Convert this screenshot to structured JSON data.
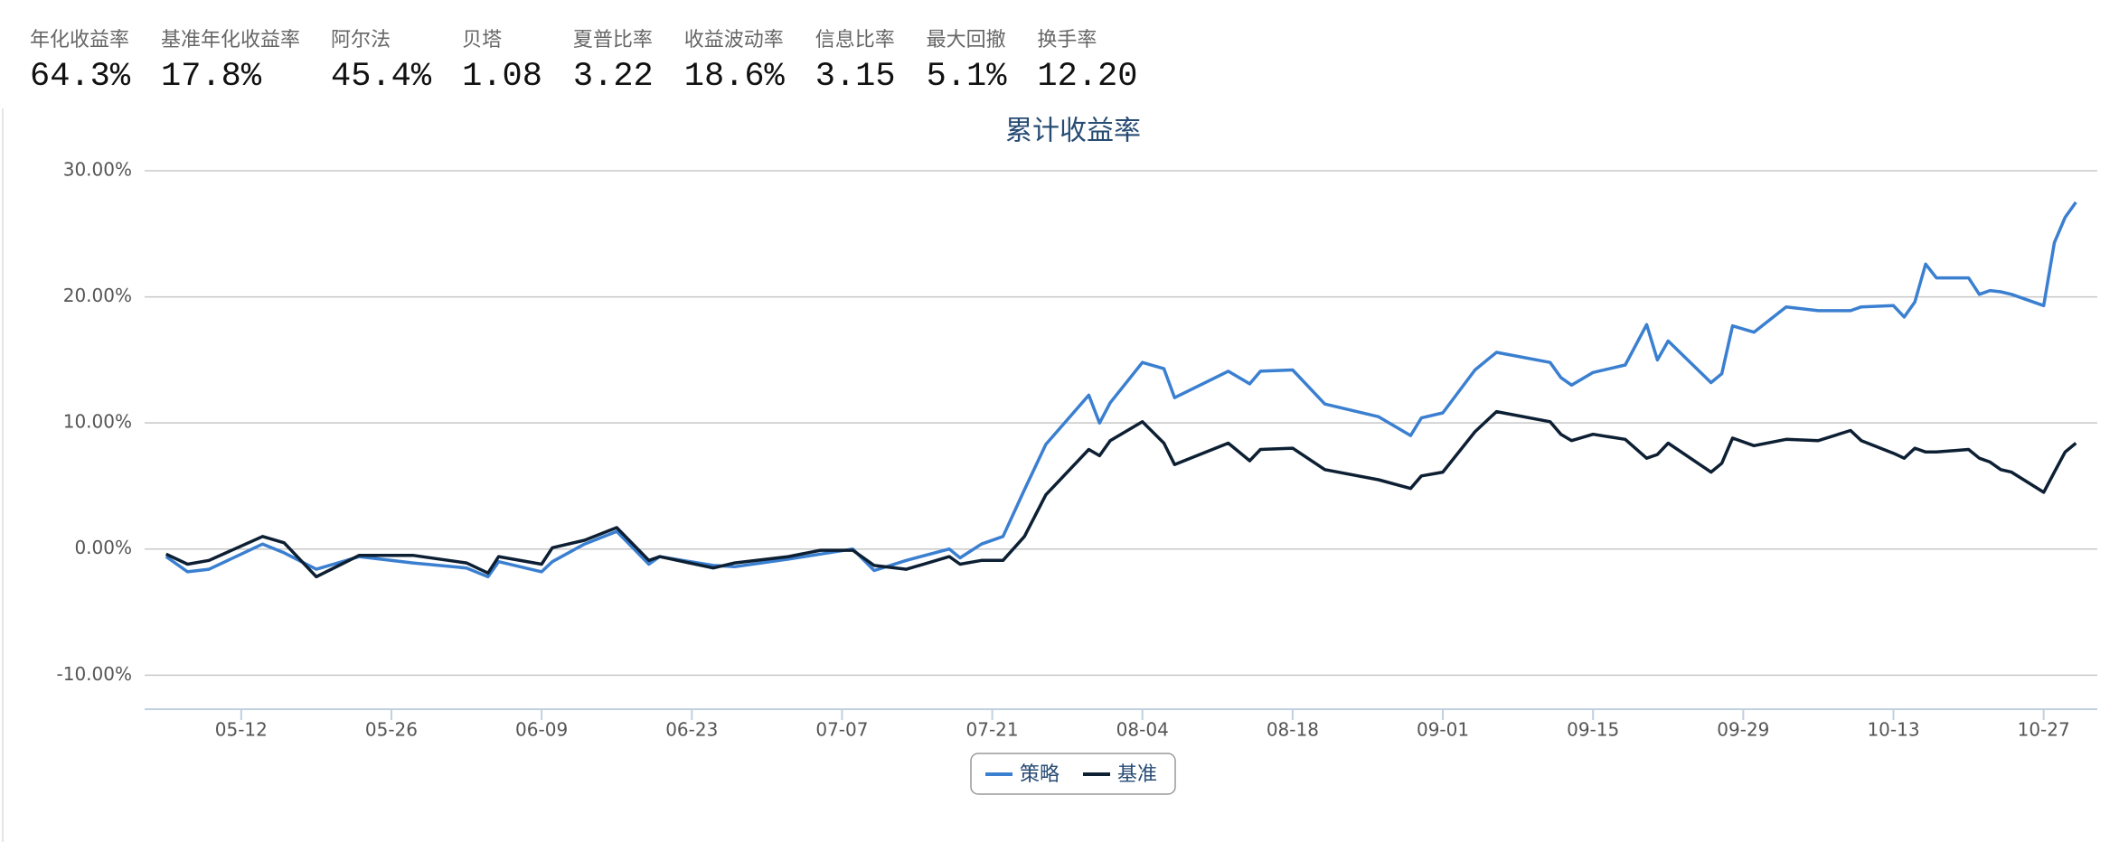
{
  "stats": [
    {
      "label": "年化收益率",
      "value": "64.3%"
    },
    {
      "label": "基准年化收益率",
      "value": "17.8%"
    },
    {
      "label": "阿尔法",
      "value": "45.4%"
    },
    {
      "label": "贝塔",
      "value": "1.08"
    },
    {
      "label": "夏普比率",
      "value": "3.22"
    },
    {
      "label": "收益波动率",
      "value": "18.6%"
    },
    {
      "label": "信息比率",
      "value": "3.15"
    },
    {
      "label": "最大回撤",
      "value": "5.1%"
    },
    {
      "label": "换手率",
      "value": "12.20"
    }
  ],
  "chart_data": {
    "type": "line",
    "title": "累计收益率",
    "x": [
      "05-05",
      "05-07",
      "05-09",
      "05-14",
      "05-16",
      "05-19",
      "05-23",
      "05-28",
      "06-02",
      "06-04",
      "06-05",
      "06-09",
      "06-10",
      "06-13",
      "06-16",
      "06-19",
      "06-20",
      "06-25",
      "06-27",
      "07-02",
      "07-05",
      "07-08",
      "07-10",
      "07-13",
      "07-17",
      "07-18",
      "07-20",
      "07-22",
      "07-24",
      "07-26",
      "07-30",
      "07-31",
      "08-01",
      "08-04",
      "08-06",
      "08-07",
      "08-12",
      "08-14",
      "08-15",
      "08-18",
      "08-21",
      "08-26",
      "08-29",
      "08-30",
      "09-01",
      "09-04",
      "09-06",
      "09-11",
      "09-12",
      "09-13",
      "09-15",
      "09-18",
      "09-20",
      "09-21",
      "09-22",
      "09-26",
      "09-27",
      "09-28",
      "09-30",
      "10-03",
      "10-06",
      "10-09",
      "10-10",
      "10-13",
      "10-14",
      "10-15",
      "10-16",
      "10-17",
      "10-20",
      "10-21",
      "10-22",
      "10-23",
      "10-24",
      "10-27",
      "10-28",
      "10-29",
      "10-30"
    ],
    "series": [
      {
        "name": "策略",
        "color": "#3a7fd0",
        "values": [
          -0.6,
          -1.8,
          -1.6,
          0.4,
          -0.3,
          -1.6,
          -0.6,
          -1.1,
          -1.5,
          -2.2,
          -1.0,
          -1.8,
          -1.0,
          0.4,
          1.4,
          -1.2,
          -0.6,
          -1.3,
          -1.4,
          -0.8,
          -0.4,
          0,
          -1.7,
          -0.9,
          0,
          -0.7,
          0.4,
          1.0,
          4.7,
          8.3,
          12.2,
          10.0,
          11.6,
          14.8,
          14.3,
          12.0,
          14.1,
          13.1,
          14.1,
          14.2,
          11.5,
          10.5,
          9.0,
          10.4,
          10.8,
          14.2,
          15.6,
          14.8,
          13.6,
          13.0,
          14.0,
          14.6,
          17.8,
          15.0,
          16.5,
          13.2,
          13.9,
          17.7,
          17.2,
          19.2,
          18.9,
          18.9,
          19.2,
          19.3,
          18.4,
          19.6,
          22.6,
          21.5,
          21.5,
          20.2,
          20.5,
          20.4,
          20.2,
          19.3,
          24.3,
          26.3,
          27.5
        ]
      },
      {
        "name": "基准",
        "color": "#0d1f33",
        "values": [
          -0.4,
          -1.2,
          -0.9,
          1.0,
          0.5,
          -2.2,
          -0.5,
          -0.5,
          -1.1,
          -1.9,
          -0.6,
          -1.2,
          0.1,
          0.7,
          1.7,
          -0.9,
          -0.6,
          -1.5,
          -1.1,
          -0.6,
          -0.1,
          -0.1,
          -1.3,
          -1.6,
          -0.6,
          -1.2,
          -0.9,
          -0.9,
          1.0,
          4.3,
          7.9,
          7.4,
          8.6,
          10.1,
          8.4,
          6.7,
          8.4,
          7.0,
          7.9,
          8.0,
          6.3,
          5.5,
          4.8,
          5.8,
          6.1,
          9.3,
          10.9,
          10.1,
          9.1,
          8.6,
          9.1,
          8.7,
          7.2,
          7.5,
          8.4,
          6.1,
          6.8,
          8.8,
          8.2,
          8.7,
          8.6,
          9.4,
          8.6,
          7.6,
          7.2,
          8.0,
          7.7,
          7.7,
          7.9,
          7.2,
          6.9,
          6.3,
          6.1,
          4.5,
          6.1,
          7.7,
          8.4
        ]
      }
    ],
    "xlim": [
      "05-03",
      "11-01"
    ],
    "xticks": [
      "05-12",
      "05-26",
      "06-09",
      "06-23",
      "07-07",
      "07-21",
      "08-04",
      "08-18",
      "09-01",
      "09-15",
      "09-29",
      "10-13",
      "10-27"
    ],
    "ylim": [
      -12.7,
      30
    ],
    "yticks": [
      {
        "value": -10,
        "label": "-10.00%"
      },
      {
        "value": 0,
        "label": "0.00%"
      },
      {
        "value": 10,
        "label": "10.00%"
      },
      {
        "value": 20,
        "label": "20.00%"
      },
      {
        "value": 30,
        "label": "30.00%"
      }
    ],
    "grid": true,
    "legend": "bottom"
  }
}
